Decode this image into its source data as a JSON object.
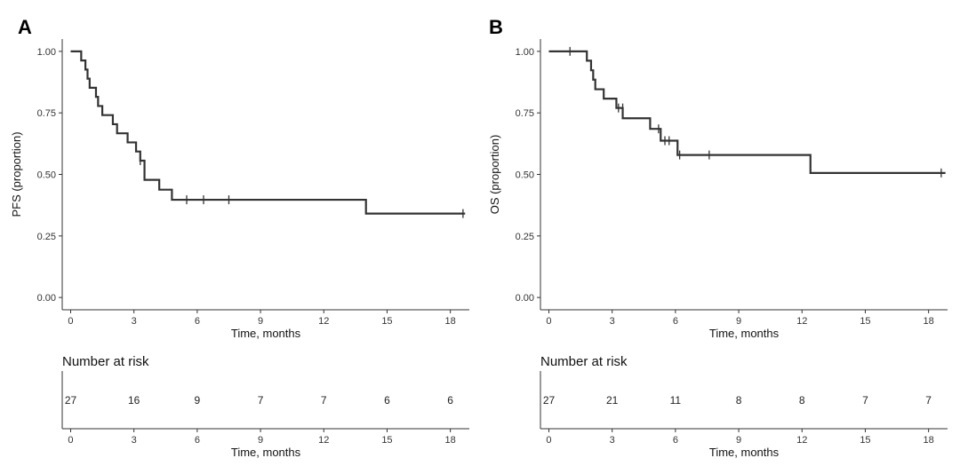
{
  "chart_data": [
    {
      "type": "line",
      "panel_letter": "A",
      "xlabel": "Time, months",
      "ylabel": "PFS (proportion)",
      "xlim": [
        -0.4,
        18.9
      ],
      "ylim": [
        -0.05,
        1.05
      ],
      "xticks": [
        0,
        3,
        6,
        9,
        12,
        15,
        18
      ],
      "xtick_labels": [
        "0",
        "3",
        "6",
        "9",
        "12",
        "15",
        "18"
      ],
      "yticks": [
        0,
        0.25,
        0.5,
        0.75,
        1
      ],
      "ytick_labels": [
        "0.00",
        "0.25",
        "0.50",
        "0.75",
        "1.00"
      ],
      "grid": false,
      "step_curve": [
        [
          0,
          1.0
        ],
        [
          0.5,
          0.963
        ],
        [
          0.7,
          0.926
        ],
        [
          0.8,
          0.889
        ],
        [
          0.9,
          0.852
        ],
        [
          1.2,
          0.815
        ],
        [
          1.3,
          0.778
        ],
        [
          1.5,
          0.741
        ],
        [
          2.0,
          0.704
        ],
        [
          2.2,
          0.667
        ],
        [
          2.7,
          0.63
        ],
        [
          3.1,
          0.593
        ],
        [
          3.3,
          0.556
        ],
        [
          3.5,
          0.478
        ],
        [
          4.2,
          0.438
        ],
        [
          4.8,
          0.397
        ],
        [
          14.0,
          0.341
        ],
        [
          18.7,
          0.341
        ]
      ],
      "censor_marks": [
        [
          3.3,
          0.556
        ],
        [
          5.5,
          0.397
        ],
        [
          6.3,
          0.397
        ],
        [
          7.5,
          0.397
        ],
        [
          18.6,
          0.341
        ]
      ],
      "risk_table": {
        "title": "Number at risk",
        "xlabel": "Time, months",
        "times": [
          0,
          3,
          6,
          9,
          12,
          15,
          18
        ],
        "time_labels": [
          "0",
          "3",
          "6",
          "9",
          "12",
          "15",
          "18"
        ],
        "counts": [
          "27",
          "16",
          "9",
          "7",
          "7",
          "6",
          "6"
        ]
      }
    },
    {
      "type": "line",
      "panel_letter": "B",
      "xlabel": "Time, months",
      "ylabel": "OS (proportion)",
      "xlim": [
        -0.4,
        18.9
      ],
      "ylim": [
        -0.05,
        1.05
      ],
      "xticks": [
        0,
        3,
        6,
        9,
        12,
        15,
        18
      ],
      "xtick_labels": [
        "0",
        "3",
        "6",
        "9",
        "12",
        "15",
        "18"
      ],
      "yticks": [
        0,
        0.25,
        0.5,
        0.75,
        1
      ],
      "ytick_labels": [
        "0.00",
        "0.25",
        "0.50",
        "0.75",
        "1.00"
      ],
      "grid": false,
      "step_curve": [
        [
          0,
          1.0
        ],
        [
          1.8,
          0.962
        ],
        [
          2.0,
          0.923
        ],
        [
          2.1,
          0.885
        ],
        [
          2.2,
          0.846
        ],
        [
          2.6,
          0.808
        ],
        [
          3.2,
          0.77
        ],
        [
          3.5,
          0.728
        ],
        [
          4.8,
          0.685
        ],
        [
          5.3,
          0.637
        ],
        [
          6.1,
          0.579
        ],
        [
          12.4,
          0.506
        ],
        [
          18.8,
          0.506
        ]
      ],
      "censor_marks": [
        [
          1.0,
          1.0
        ],
        [
          3.3,
          0.77
        ],
        [
          3.5,
          0.77
        ],
        [
          5.2,
          0.685
        ],
        [
          5.5,
          0.637
        ],
        [
          5.7,
          0.637
        ],
        [
          6.2,
          0.579
        ],
        [
          7.6,
          0.579
        ],
        [
          18.6,
          0.506
        ]
      ],
      "risk_table": {
        "title": "Number at risk",
        "xlabel": "Time, months",
        "times": [
          0,
          3,
          6,
          9,
          12,
          15,
          18
        ],
        "time_labels": [
          "0",
          "3",
          "6",
          "9",
          "12",
          "15",
          "18"
        ],
        "counts": [
          "27",
          "21",
          "11",
          "8",
          "8",
          "7",
          "7"
        ]
      }
    }
  ]
}
